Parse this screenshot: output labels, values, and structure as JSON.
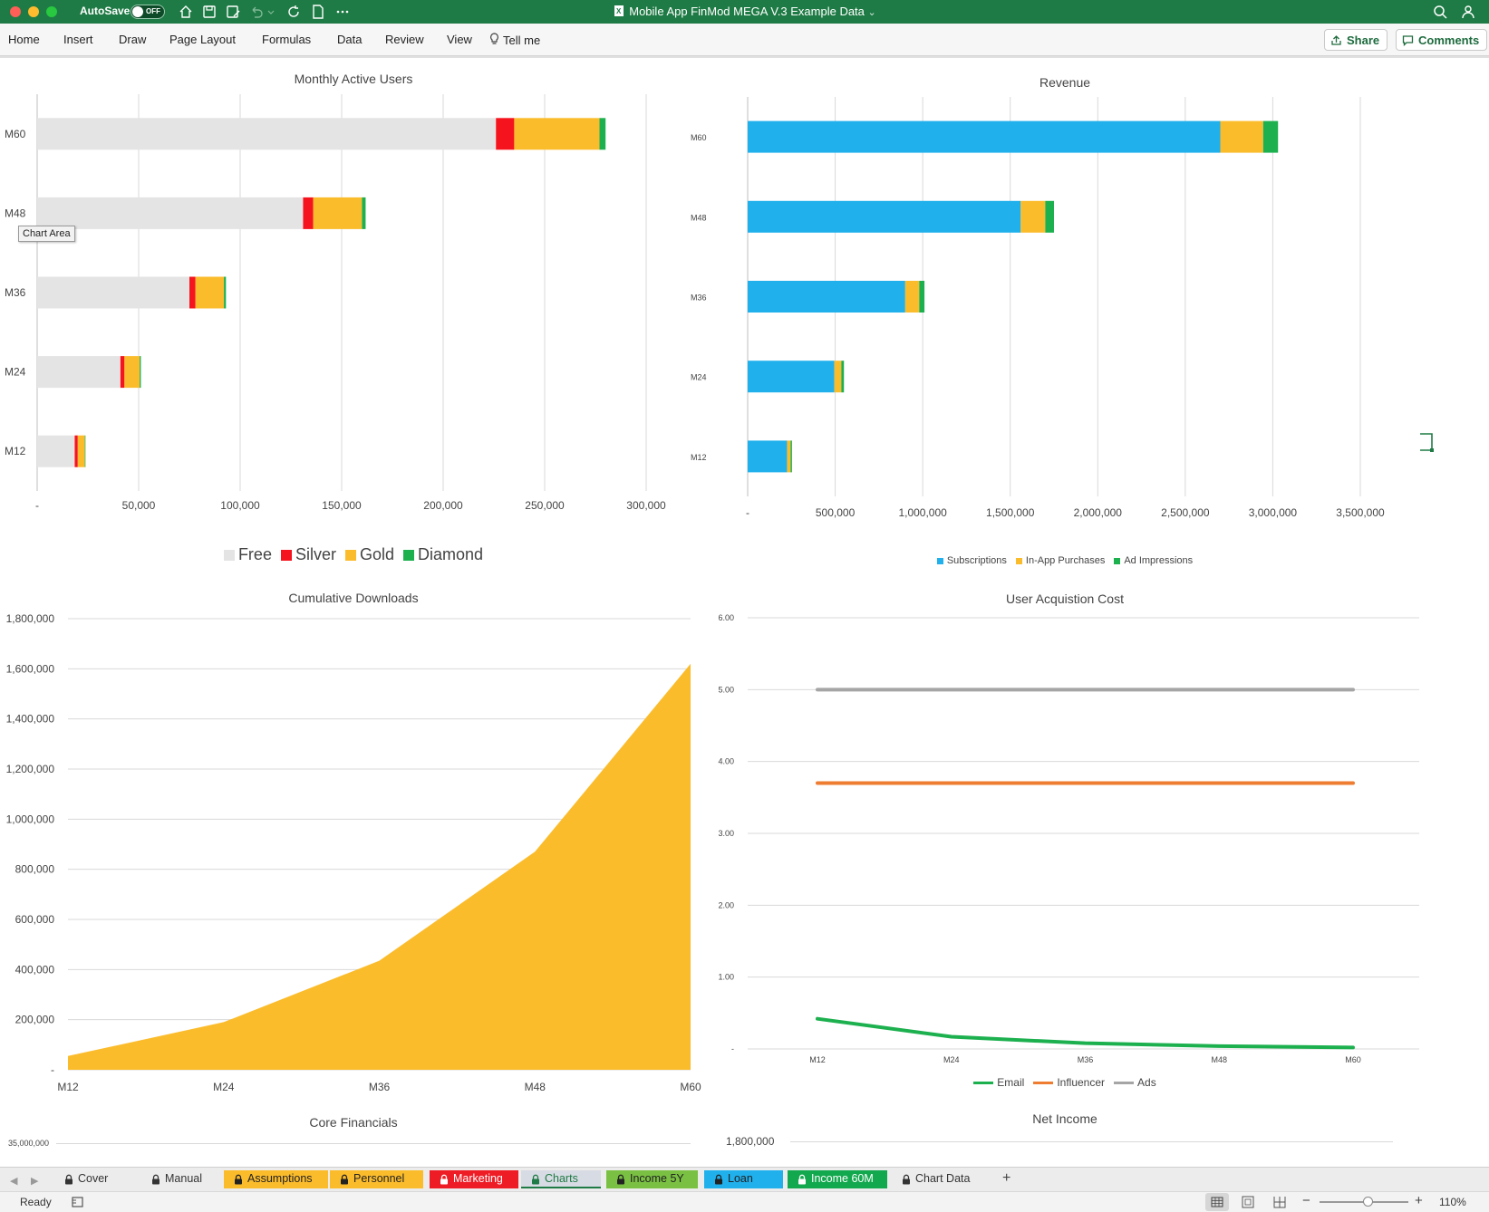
{
  "window": {
    "autosave_label": "AutoSave",
    "autosave_state": "OFF",
    "title": "Mobile App FinMod MEGA V.3 Example Data",
    "title_chevron": "⌄"
  },
  "ribbon": {
    "tabs": [
      "Home",
      "Insert",
      "Draw",
      "Page Layout",
      "Formulas",
      "Data",
      "Review",
      "View",
      "Tell me"
    ],
    "share_label": "Share",
    "comments_label": "Comments"
  },
  "tooltip": "Chart Area",
  "colors": {
    "excel_green": "#1e7b45",
    "free": "#e4e4e4",
    "silver": "#f5141e",
    "gold": "#fbbc2c",
    "diamond": "#1db04f",
    "subscriptions": "#20b0ec",
    "in_app": "#fbbc2c",
    "ads_rev": "#1db04f",
    "email": "#1db04f",
    "influencer": "#ee7d31",
    "ads_cost": "#a5a5a5"
  },
  "chart_data": [
    {
      "type": "bar",
      "orientation": "horizontal",
      "stacked": true,
      "title": "Monthly Active Users",
      "categories": [
        "M60",
        "M48",
        "M36",
        "M24",
        "M12"
      ],
      "series": [
        {
          "name": "Free",
          "values": [
            226000,
            131000,
            75000,
            41000,
            18500
          ]
        },
        {
          "name": "Silver",
          "values": [
            9000,
            5000,
            3000,
            2000,
            1500
          ]
        },
        {
          "name": "Gold",
          "values": [
            42000,
            24000,
            14000,
            7500,
            3500
          ]
        },
        {
          "name": "Diamond",
          "values": [
            3000,
            1800,
            1000,
            600,
            300
          ]
        }
      ],
      "xlim": [
        0,
        300000
      ],
      "xticks": [
        "-",
        "50,000",
        "100,000",
        "150,000",
        "200,000",
        "250,000",
        "300,000"
      ],
      "legend": "bottom",
      "grid": true
    },
    {
      "type": "bar",
      "orientation": "horizontal",
      "stacked": true,
      "title": "Revenue",
      "categories": [
        "M60",
        "M48",
        "M36",
        "M24",
        "M12"
      ],
      "series": [
        {
          "name": "Subscriptions",
          "values": [
            2700000,
            1560000,
            900000,
            495000,
            225000
          ]
        },
        {
          "name": "In-App Purchases",
          "values": [
            245000,
            140000,
            80000,
            40000,
            20000
          ]
        },
        {
          "name": "Ad Impressions",
          "values": [
            85000,
            50000,
            30000,
            15000,
            8000
          ]
        }
      ],
      "xlim": [
        0,
        3500000
      ],
      "xticks": [
        "-",
        "500,000",
        "1,000,000",
        "1,500,000",
        "2,000,000",
        "2,500,000",
        "3,000,000",
        "3,500,000"
      ],
      "legend": "bottom",
      "grid": true
    },
    {
      "type": "area",
      "title": "Cumulative Downloads",
      "categories": [
        "M12",
        "M24",
        "M36",
        "M48",
        "M60"
      ],
      "series": [
        {
          "name": "",
          "values": [
            55000,
            190000,
            435000,
            870000,
            1620000
          ]
        }
      ],
      "ylim": [
        0,
        1800000
      ],
      "yticks": [
        "-",
        "200,000",
        "400,000",
        "600,000",
        "800,000",
        "1,000,000",
        "1,200,000",
        "1,400,000",
        "1,600,000",
        "1,800,000"
      ],
      "grid": true
    },
    {
      "type": "line",
      "title": "User Acquistion Cost",
      "categories": [
        "M12",
        "M24",
        "M36",
        "M48",
        "M60"
      ],
      "series": [
        {
          "name": "Email",
          "values": [
            0.42,
            0.17,
            0.08,
            0.04,
            0.02
          ]
        },
        {
          "name": "Influencer",
          "values": [
            3.7,
            3.7,
            3.7,
            3.7,
            3.7
          ]
        },
        {
          "name": "Ads",
          "values": [
            5.0,
            5.0,
            5.0,
            5.0,
            5.0
          ]
        }
      ],
      "ylim": [
        0,
        6
      ],
      "yticks": [
        "-",
        "1.00",
        "2.00",
        "3.00",
        "4.00",
        "5.00",
        "6.00"
      ],
      "legend": "bottom",
      "grid": true
    },
    {
      "type": "bar",
      "title": "Core Financials",
      "visible_ytick": "35,000,000"
    },
    {
      "type": "line",
      "title": "Net Income",
      "visible_ytick": "1,800,000"
    }
  ],
  "sheet_tabs": [
    {
      "label": "Cover",
      "bg": "#ececec",
      "fg": "#333333"
    },
    {
      "label": "Manual",
      "bg": "#ececec",
      "fg": "#333333"
    },
    {
      "label": "Assumptions",
      "bg": "#fbbc2c",
      "fg": "#222222"
    },
    {
      "label": "Personnel",
      "bg": "#fbbc2c",
      "fg": "#222222"
    },
    {
      "label": "Marketing",
      "bg": "#ee1c25",
      "fg": "#ffffff"
    },
    {
      "label": "Charts",
      "bg": "#d7dbe3",
      "fg": "#1e7b45"
    },
    {
      "label": "Income 5Y",
      "bg": "#7ac143",
      "fg": "#222222"
    },
    {
      "label": "Loan",
      "bg": "#20b0ec",
      "fg": "#222222"
    },
    {
      "label": "Income 60M",
      "bg": "#12a84e",
      "fg": "#ffffff"
    },
    {
      "label": "Chart Data",
      "bg": "#ececec",
      "fg": "#333333"
    }
  ],
  "status": {
    "ready": "Ready",
    "zoom": "110%",
    "zoom_fraction": 0.55
  }
}
